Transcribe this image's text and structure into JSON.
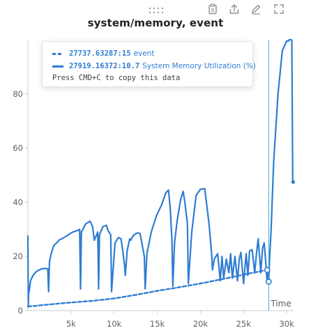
{
  "panel": {
    "title": "system/memory, event",
    "toolbar_icons": [
      "drag-handle-icon",
      "clipboard-icon",
      "share-icon",
      "edit-icon",
      "fullscreen-icon"
    ]
  },
  "tooltip": {
    "rows": [
      {
        "x": "27737.63287",
        "y": "15",
        "name": "event",
        "style": "dashed"
      },
      {
        "x": "27919.16372",
        "y": "10.7",
        "name": "System Memory Utilization (%)",
        "style": "solid"
      }
    ],
    "hint": "Press CMD+C to copy this data"
  },
  "chart_data": {
    "type": "line",
    "title": "system/memory, event",
    "xlabel": "Time",
    "ylabel": "",
    "xlim": [
      0,
      30800
    ],
    "ylim": [
      0,
      100
    ],
    "x_ticks": [
      5000,
      10000,
      15000,
      20000,
      25000,
      30000
    ],
    "x_tick_labels": [
      "5k",
      "10k",
      "15k",
      "20k",
      "25k",
      "30k"
    ],
    "y_ticks": [
      0,
      20,
      40,
      60,
      80
    ],
    "y_tick_labels": [
      "0",
      "20",
      "40",
      "60",
      "80"
    ],
    "grid": false,
    "color": "#2f7cd3",
    "hover_x": 27919.16372,
    "series": [
      {
        "name": "event",
        "style": "dashed",
        "x": [
          0,
          2500,
          5000,
          7500,
          10000,
          12500,
          15000,
          17500,
          20000,
          22500,
          25000,
          27737.63
        ],
        "y": [
          1.5,
          2.3,
          3.0,
          3.6,
          4.5,
          5.8,
          7.3,
          8.6,
          10.0,
          11.6,
          13.3,
          15
        ]
      },
      {
        "name": "System Memory Utilization (%)",
        "style": "solid",
        "x": [
          0,
          50,
          100,
          150,
          200,
          300,
          600,
          1000,
          1500,
          2000,
          2300,
          2400,
          2500,
          2700,
          3000,
          3500,
          3600,
          3700,
          4200,
          4700,
          5200,
          5700,
          6000,
          6100,
          6200,
          6700,
          7200,
          7500,
          7700,
          8100,
          8200,
          8300,
          8700,
          9100,
          9300,
          9600,
          9700,
          10100,
          10500,
          10800,
          11000,
          11200,
          11300,
          11500,
          11800,
          11900,
          12100,
          12300,
          12700,
          13000,
          13500,
          13600,
          13800,
          14300,
          14900,
          15500,
          16000,
          16300,
          16500,
          16700,
          16800,
          17000,
          17300,
          17700,
          18000,
          18200,
          18500,
          18600,
          19000,
          19500,
          20000,
          20500,
          21000,
          21300,
          21400,
          21600,
          22000,
          22300,
          22500,
          22700,
          23000,
          23300,
          23500,
          23700,
          24000,
          24300,
          24500,
          24700,
          25000,
          25300,
          25500,
          25700,
          26000,
          26300,
          26500,
          26700,
          27000,
          27200,
          27400,
          27600,
          27737,
          27800,
          27919,
          28000,
          28200,
          28500,
          29000,
          29500,
          30000,
          30200,
          30300,
          30500,
          30600,
          30700,
          30750
        ],
        "y": [
          27.5,
          1.5,
          8,
          7,
          8.5,
          11,
          13,
          14.5,
          15.3,
          15.6,
          15.4,
          7,
          18,
          21,
          24,
          25.5,
          26,
          26.2,
          27,
          28,
          29,
          29.5,
          30,
          8,
          29,
          32,
          33,
          31,
          26,
          29,
          8,
          28,
          31,
          31.5,
          29.5,
          28,
          7,
          25,
          27,
          26.5,
          22,
          17,
          13,
          22,
          26.5,
          26,
          27,
          28,
          28.7,
          28.5,
          20,
          8,
          21,
          29,
          35,
          39,
          43.5,
          44.5,
          38,
          26,
          9,
          25,
          33,
          41,
          44,
          40,
          32,
          10,
          29,
          42.5,
          44.8,
          45,
          32,
          21,
          15,
          19,
          21,
          11,
          20,
          12,
          19,
          14,
          21,
          12,
          20,
          11,
          19,
          21.5,
          10,
          21,
          13,
          22,
          22.5,
          14,
          21,
          26.5,
          14,
          23,
          25,
          17,
          10.7,
          14,
          10.7,
          18,
          30,
          55,
          80,
          96,
          99.5,
          99.5,
          100,
          100,
          99.8,
          48,
          47.5
        ]
      }
    ]
  }
}
